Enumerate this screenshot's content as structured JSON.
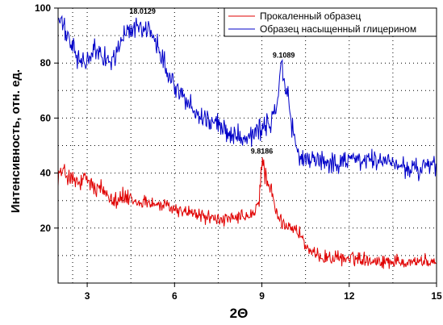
{
  "chart_data": {
    "type": "line",
    "title": "",
    "xlabel": "2Θ",
    "ylabel": "Интенсивность, отн. ед.",
    "xlim": [
      2,
      15
    ],
    "ylim": [
      0,
      100
    ],
    "x_ticks": [
      3,
      6,
      9,
      12,
      15
    ],
    "x_tick_labels": [
      "3",
      "6",
      "9",
      "12",
      "15"
    ],
    "y_ticks": [
      20,
      40,
      60,
      80,
      100
    ],
    "y_tick_labels": [
      "20",
      "40",
      "60",
      "80",
      "100"
    ],
    "grid": true,
    "grid_style": "dotted",
    "legend_position": "top-right",
    "series": [
      {
        "name": "Прокаленный образец",
        "color": "#e00000",
        "x": [
          2.0,
          2.25,
          2.5,
          2.75,
          3.0,
          3.25,
          3.5,
          3.75,
          4.0,
          4.25,
          4.5,
          4.75,
          5.0,
          5.25,
          5.5,
          5.75,
          6.0,
          6.25,
          6.5,
          6.75,
          7.0,
          7.25,
          7.5,
          7.75,
          8.0,
          8.25,
          8.5,
          8.75,
          8.9,
          9.0,
          9.1,
          9.25,
          9.5,
          9.75,
          10.0,
          10.25,
          10.35,
          10.5,
          10.75,
          11.0,
          11.5,
          12.0,
          12.5,
          13.0,
          13.5,
          14.0,
          14.5,
          15.0
        ],
        "values": [
          40,
          40,
          37,
          36,
          38,
          34,
          34,
          32,
          31,
          31,
          30,
          29,
          30,
          29,
          28,
          28,
          27,
          26,
          26,
          25,
          24,
          24,
          23,
          23,
          23,
          24,
          24,
          25,
          30,
          45,
          40,
          36,
          25,
          21,
          21,
          18,
          18,
          13,
          10,
          10,
          9,
          9,
          9,
          8,
          8,
          8,
          8,
          7
        ],
        "annotation": {
          "label": "9.8186",
          "x": 9.0,
          "y": 47
        }
      },
      {
        "name": "Образец насыщенный глицерином",
        "color": "#0000c8",
        "x": [
          2.0,
          2.25,
          2.5,
          2.75,
          3.0,
          3.25,
          3.5,
          3.75,
          4.0,
          4.25,
          4.5,
          4.75,
          5.0,
          5.25,
          5.5,
          5.75,
          6.0,
          6.25,
          6.5,
          6.75,
          7.0,
          7.25,
          7.5,
          7.75,
          8.0,
          8.25,
          8.5,
          8.75,
          9.0,
          9.25,
          9.5,
          9.6,
          9.7,
          9.8,
          9.9,
          10.0,
          10.25,
          10.5,
          11.0,
          11.5,
          12.0,
          12.5,
          13.0,
          13.5,
          14.0,
          14.5,
          15.0
        ],
        "values": [
          97,
          91,
          86,
          80,
          81,
          84,
          84,
          80,
          83,
          90,
          92,
          94,
          92,
          90,
          85,
          78,
          72,
          68,
          65,
          62,
          60,
          59,
          57,
          56,
          54,
          54,
          53,
          55,
          56,
          58,
          62,
          75,
          78,
          72,
          68,
          58,
          47,
          44,
          45,
          43,
          46,
          44,
          45,
          43,
          42,
          41,
          43
        ],
        "annotation": {
          "label": "9.1089",
          "x": 9.75,
          "y": 82
        }
      },
      {
        "name": "",
        "color": "#000000",
        "annotation_only": true,
        "annotation": {
          "label": "18.0129",
          "x": 4.9,
          "y": 98
        }
      }
    ]
  }
}
